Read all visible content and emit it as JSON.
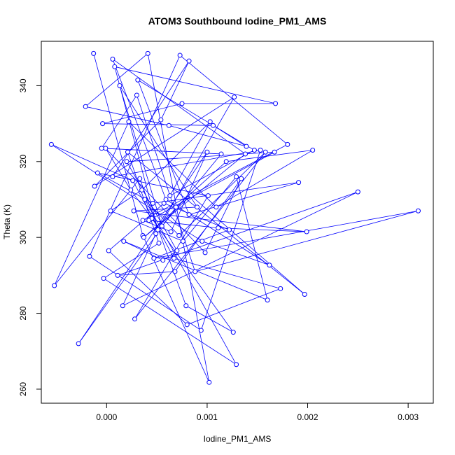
{
  "chart_data": {
    "type": "scatter",
    "title": "ATOM3 Southbound Iodine_PM1_AMS",
    "xlabel": "Iodine_PM1_AMS",
    "ylabel": "Theta (K)",
    "xlim": [
      -0.00065,
      0.00325
    ],
    "ylim": [
      256.3,
      351.7
    ],
    "x_ticks": [
      0.0,
      0.001,
      0.002,
      0.003
    ],
    "x_tick_labels": [
      "0.000",
      "0.001",
      "0.002",
      "0.003"
    ],
    "y_ticks": [
      260,
      280,
      300,
      320,
      340
    ],
    "y_tick_labels": [
      "260",
      "280",
      "300",
      "320",
      "340"
    ],
    "grid": false,
    "legend": "none",
    "series_color": "#0000ff",
    "connected": true,
    "series": [
      {
        "x": [
          -0.00013,
          0.00036,
          0.00102,
          0.00041,
          -0.00021,
          0.00062,
          0.00139,
          0.00106,
          -4e-05,
          0.00075,
          0.00168,
          8e-05,
          0.00051,
          0.00127,
          -0.00012,
          0.00054,
          0.00082,
          6e-05,
          0.00153,
          0.00094,
          -0.00017,
          0.00073,
          0.0018,
          0.00036,
          0.00064,
          0.001,
          -0.00028,
          0.00069,
          0.00119,
          0.00205,
          0.00109,
          0.00022,
          -0.00052,
          0.00033,
          0.00079,
          0.00126,
          0.00045,
          0.00024,
          -1e-05,
          0.00098,
          0.00134,
          0.00068,
          0.00011,
          0.0025,
          0.00016,
          0.00049,
          0.00114,
          -5e-05,
          0.0003,
          0.00088,
          0.0031,
          0.00047,
          0.00122,
          0.00057,
          2e-05,
          0.0008,
          0.00173,
          0.00067,
          0.00026,
          -0.00055,
          0.00095,
          0.00162,
          0.00059,
          6e-05,
          0.00138,
          0.00037,
          0.00084,
          0.00197,
          0.00021,
          0.00052,
          -3e-05,
          0.00129,
          0.00038,
          0.00072,
          0.00158,
          0.00028,
          0.00101,
          -9e-05,
          0.00046,
          0.00191,
          0.00082,
          0.00031,
          0.00147,
          0.00063,
          0.00103,
          0.00035,
          4e-05,
          0.00076,
          0.00129,
          0.0016,
          0.00017,
          0.00056,
          0.0007,
          0.0002,
          0.00167,
          0.00042,
          0.00111,
          0.00199,
          0.00027,
          0.0009,
          0.00013,
          0.00055
        ],
        "y": [
          348.5,
          300.5,
          261.8,
          348.5,
          334.5,
          329.5,
          324.0,
          329.5,
          330.0,
          335.3,
          335.3,
          345.0,
          302.0,
          337.0,
          313.5,
          331.0,
          346.5,
          316.0,
          323.0,
          275.5,
          295.0,
          348.0,
          324.5,
          304.5,
          301.5,
          322.5,
          272.0,
          308.0,
          320.0,
          323.0,
          308.0,
          330.5,
          287.3,
          315.5,
          282.0,
          275.0,
          305.0,
          312.5,
          323.5,
          296.0,
          315.5,
          291.0,
          290.0,
          312.0,
          282.0,
          301.0,
          322.0,
          323.5,
          337.5,
          291.0,
          307.0,
          294.5,
          302.0,
          309.0,
          296.5,
          277.0,
          286.5,
          294.5,
          315.0,
          324.5,
          299.0,
          292.7,
          310.0,
          347.0,
          322.0,
          300.0,
          311.0,
          285.0,
          322.5,
          298.5,
          289.2,
          266.5,
          310.0,
          300.5,
          322.5,
          278.5,
          311.0,
          317.0,
          309.0,
          314.5,
          306.0,
          341.5,
          323.0,
          311.0,
          330.5,
          312.5,
          307.0,
          299.0,
          316.0,
          283.5,
          299.0,
          294.0,
          296.5,
          320.0,
          322.5,
          304.5,
          302.5,
          301.5,
          307.0,
          308.0,
          340.0,
          303.0
        ]
      }
    ]
  }
}
